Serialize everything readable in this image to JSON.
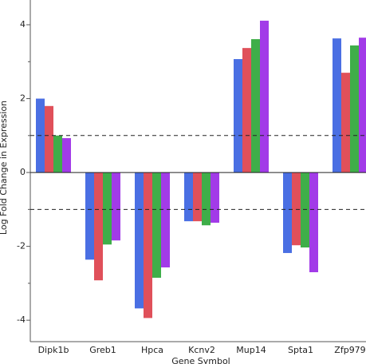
{
  "chart_data": {
    "type": "bar",
    "y_label": "Log Fold Change in Expression",
    "x_label": "Gene Symbol",
    "categories": [
      "Dipk1b",
      "Greb1",
      "Hpca",
      "Kcnv2",
      "Mup14",
      "Spta1",
      "Zfp979"
    ],
    "series": [
      {
        "color": "#4a6fe3",
        "values": [
          2.0,
          -2.36,
          -3.68,
          -1.32,
          3.07,
          -2.18,
          3.63
        ]
      },
      {
        "color": "#e0505a",
        "values": [
          1.8,
          -2.92,
          -3.94,
          -1.32,
          3.37,
          -1.97,
          2.7
        ]
      },
      {
        "color": "#3fae49",
        "values": [
          1.0,
          -1.95,
          -2.85,
          -1.43,
          3.61,
          -2.03,
          3.44
        ]
      },
      {
        "color": "#a23be8",
        "values": [
          0.93,
          -1.84,
          -2.57,
          -1.36,
          4.11,
          -2.7,
          3.65
        ]
      }
    ],
    "ylim": [
      -4.58,
      4.67
    ],
    "yticks": [
      -4,
      -2,
      0,
      2,
      4
    ],
    "yminor_ticks": [
      -3,
      -1,
      1,
      3
    ],
    "reference_lines": [
      {
        "value": 1,
        "dashed": true
      },
      {
        "value": 0,
        "dashed": false
      },
      {
        "value": -1,
        "dashed": true
      }
    ],
    "grid": false
  }
}
